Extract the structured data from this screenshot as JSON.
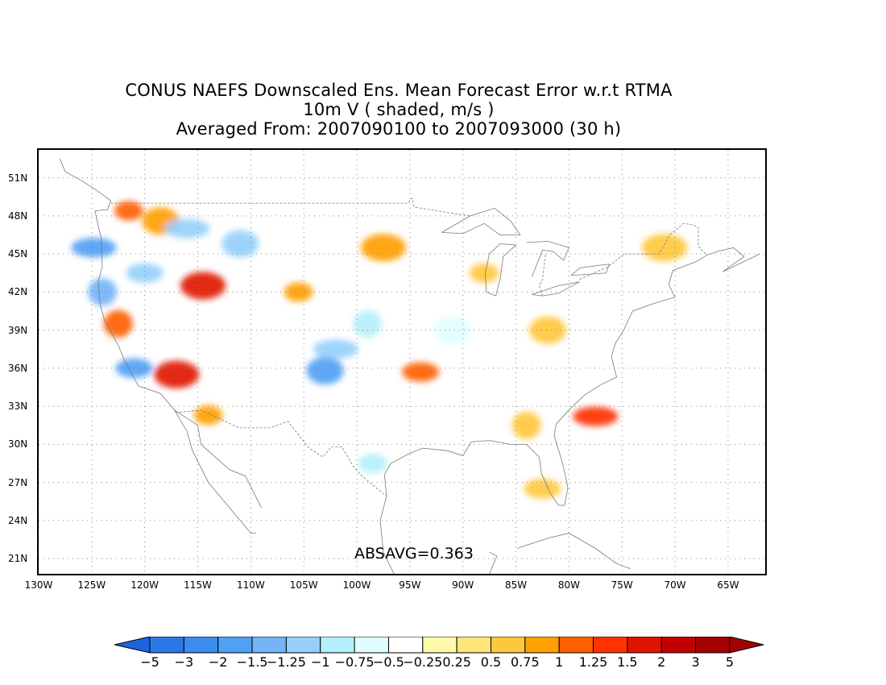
{
  "title": {
    "line1": "CONUS NAEFS Downscaled Ens. Mean Forecast Error w.r.t RTMA",
    "line2": "10m V ( shaded, m/s )",
    "line3": "Averaged From: 2007090100 to 2007093000 (30 h)"
  },
  "map": {
    "lat_labels": [
      "51N",
      "48N",
      "45N",
      "42N",
      "39N",
      "36N",
      "33N",
      "30N",
      "27N",
      "24N",
      "21N"
    ],
    "lon_labels": [
      "130W",
      "125W",
      "120W",
      "115W",
      "110W",
      "105W",
      "100W",
      "95W",
      "90W",
      "85W",
      "80W",
      "75W",
      "70W",
      "65W"
    ],
    "lat_values": [
      51,
      48,
      45,
      42,
      39,
      36,
      33,
      30,
      27,
      24,
      21
    ],
    "lon_values": [
      -130,
      -125,
      -120,
      -115,
      -110,
      -105,
      -100,
      -95,
      -90,
      -85,
      -80,
      -75,
      -70,
      -65
    ],
    "extent": {
      "lon_min": -130,
      "lon_max": -61.5,
      "lat_min": 19.8,
      "lat_max": 53.2
    },
    "gridlines": true,
    "absavg": "ABSAVG=0.363"
  },
  "colorbar": {
    "tick_labels": [
      "-5",
      "-3",
      "-2",
      "-1.5",
      "-1.25",
      "-1",
      "-0.75",
      "-0.5",
      "-0.25",
      "0.25",
      "0.5",
      "0.75",
      "1",
      "1.25",
      "1.5",
      "2",
      "3",
      "5"
    ],
    "colors": [
      "#1e64dc",
      "#2c78e6",
      "#3c8cf0",
      "#50a0f4",
      "#74b4f8",
      "#96d0fa",
      "#b4f0fc",
      "#e0fefe",
      "#ffffff",
      "#fffaaa",
      "#ffe678",
      "#ffc83c",
      "#ffa000",
      "#ff6000",
      "#ff3200",
      "#e11400",
      "#c00000",
      "#a50000"
    ]
  },
  "blobs": [
    {
      "lon": -121.5,
      "lat": 48.4,
      "value": 1.2
    },
    {
      "lon": -118.5,
      "lat": 47.6,
      "value": 0.9
    },
    {
      "lon": -124.8,
      "lat": 45.5,
      "value": -1.3
    },
    {
      "lon": -124.0,
      "lat": 42.0,
      "value": -1.1
    },
    {
      "lon": -120.0,
      "lat": 43.5,
      "value": -1.0
    },
    {
      "lon": -114.5,
      "lat": 42.5,
      "value": 1.5
    },
    {
      "lon": -105.5,
      "lat": 42.0,
      "value": 0.8
    },
    {
      "lon": -111.0,
      "lat": 45.8,
      "value": -0.8
    },
    {
      "lon": -116.0,
      "lat": 47.0,
      "value": -0.9
    },
    {
      "lon": -122.5,
      "lat": 39.5,
      "value": 1.0
    },
    {
      "lon": -121.0,
      "lat": 36.0,
      "value": -1.3
    },
    {
      "lon": -117.0,
      "lat": 35.5,
      "value": 1.6
    },
    {
      "lon": -114.0,
      "lat": 32.3,
      "value": 0.8
    },
    {
      "lon": -103.0,
      "lat": 35.8,
      "value": -1.5
    },
    {
      "lon": -102.0,
      "lat": 37.5,
      "value": -0.8
    },
    {
      "lon": -99.0,
      "lat": 39.5,
      "value": -0.6
    },
    {
      "lon": -94.0,
      "lat": 35.7,
      "value": 1.2
    },
    {
      "lon": -97.5,
      "lat": 45.5,
      "value": 0.8
    },
    {
      "lon": -88.0,
      "lat": 43.5,
      "value": 0.6
    },
    {
      "lon": -82.0,
      "lat": 39.0,
      "value": 0.7
    },
    {
      "lon": -77.5,
      "lat": 32.2,
      "value": 1.3
    },
    {
      "lon": -84.0,
      "lat": 31.5,
      "value": 0.5
    },
    {
      "lon": -82.5,
      "lat": 26.5,
      "value": 0.7
    },
    {
      "lon": -71.0,
      "lat": 45.5,
      "value": 0.6
    },
    {
      "lon": -98.5,
      "lat": 28.5,
      "value": -0.7
    },
    {
      "lon": -91.0,
      "lat": 39.0,
      "value": -0.4
    }
  ],
  "coastlines": [
    [
      [
        -124.7,
        48.4
      ],
      [
        -124.1,
        46.2
      ],
      [
        -124.0,
        44.0
      ],
      [
        -124.4,
        42.8
      ],
      [
        -124.2,
        41.0
      ],
      [
        -123.8,
        39.8
      ],
      [
        -122.5,
        37.8
      ],
      [
        -121.9,
        36.6
      ],
      [
        -120.6,
        34.6
      ],
      [
        -118.5,
        34.0
      ],
      [
        -117.2,
        32.7
      ],
      [
        -115.0,
        31.5
      ],
      [
        -114.7,
        30.0
      ],
      [
        -112.0,
        28.0
      ],
      [
        -110.5,
        27.5
      ],
      [
        -109.0,
        25.0
      ]
    ],
    [
      [
        -117.2,
        32.7
      ],
      [
        -116.0,
        31.0
      ],
      [
        -115.5,
        29.5
      ],
      [
        -114.0,
        27.0
      ],
      [
        -112.0,
        25.0
      ],
      [
        -110.0,
        23.0
      ],
      [
        -109.5,
        23.0
      ]
    ],
    [
      [
        -97.2,
        25.9
      ],
      [
        -97.4,
        27.6
      ],
      [
        -96.8,
        28.5
      ],
      [
        -95.0,
        29.3
      ],
      [
        -93.8,
        29.7
      ],
      [
        -91.5,
        29.5
      ],
      [
        -90.0,
        29.1
      ],
      [
        -89.2,
        30.2
      ],
      [
        -87.5,
        30.3
      ],
      [
        -85.5,
        30.0
      ],
      [
        -84.0,
        30.0
      ],
      [
        -82.8,
        29.0
      ],
      [
        -82.6,
        27.7
      ],
      [
        -81.8,
        26.2
      ],
      [
        -81.0,
        25.2
      ],
      [
        -80.4,
        25.2
      ],
      [
        -80.1,
        26.6
      ],
      [
        -80.6,
        28.5
      ],
      [
        -81.4,
        30.7
      ],
      [
        -81.2,
        31.6
      ],
      [
        -79.9,
        32.8
      ],
      [
        -78.5,
        33.9
      ],
      [
        -77.0,
        34.7
      ],
      [
        -75.5,
        35.3
      ],
      [
        -76.0,
        36.9
      ],
      [
        -75.6,
        38.0
      ],
      [
        -74.9,
        38.9
      ],
      [
        -74.0,
        40.5
      ],
      [
        -72.0,
        41.1
      ],
      [
        -70.0,
        41.6
      ],
      [
        -70.6,
        42.6
      ],
      [
        -70.2,
        43.7
      ],
      [
        -68.0,
        44.4
      ],
      [
        -67.0,
        44.9
      ],
      [
        -66.0,
        45.2
      ],
      [
        -64.5,
        45.5
      ],
      [
        -63.5,
        44.8
      ],
      [
        -65.5,
        43.6
      ],
      [
        -62.0,
        45.0
      ]
    ],
    [
      [
        -97.2,
        25.9
      ],
      [
        -97.8,
        24.0
      ],
      [
        -97.5,
        21.5
      ],
      [
        -96.5,
        19.8
      ]
    ],
    [
      [
        -87.5,
        21.5
      ],
      [
        -86.8,
        21.2
      ],
      [
        -87.5,
        19.8
      ]
    ],
    [
      [
        -84.9,
        21.8
      ],
      [
        -82.0,
        22.6
      ],
      [
        -80.0,
        23.0
      ],
      [
        -77.5,
        21.8
      ],
      [
        -75.5,
        20.6
      ],
      [
        -74.2,
        20.2
      ]
    ],
    [
      [
        -124.7,
        48.4
      ],
      [
        -123.5,
        48.5
      ],
      [
        -123.2,
        49.2
      ],
      [
        -124.5,
        50.0
      ],
      [
        -126.0,
        50.8
      ],
      [
        -127.5,
        51.5
      ],
      [
        -128.0,
        52.5
      ]
    ],
    [
      [
        -92.0,
        46.7
      ],
      [
        -90.0,
        46.6
      ],
      [
        -88.0,
        47.4
      ],
      [
        -86.5,
        46.5
      ],
      [
        -84.6,
        46.5
      ],
      [
        -85.5,
        47.6
      ],
      [
        -87.0,
        48.6
      ],
      [
        -89.3,
        48.0
      ],
      [
        -92.0,
        46.7
      ]
    ],
    [
      [
        -87.8,
        42.0
      ],
      [
        -87.9,
        43.5
      ],
      [
        -87.5,
        45.0
      ],
      [
        -86.5,
        45.8
      ],
      [
        -85.0,
        45.7
      ],
      [
        -86.2,
        44.8
      ],
      [
        -86.5,
        43.0
      ],
      [
        -86.9,
        41.7
      ],
      [
        -87.8,
        42.0
      ]
    ],
    [
      [
        -82.5,
        41.7
      ],
      [
        -83.5,
        41.8
      ],
      [
        -81.0,
        42.5
      ],
      [
        -79.0,
        42.8
      ],
      [
        -81.0,
        41.9
      ],
      [
        -82.5,
        41.7
      ]
    ],
    [
      [
        -83.5,
        43.2
      ],
      [
        -82.5,
        45.3
      ],
      [
        -81.5,
        45.2
      ],
      [
        -80.5,
        44.5
      ],
      [
        -80.0,
        45.5
      ],
      [
        -82.0,
        46.0
      ],
      [
        -84.0,
        45.9
      ]
    ],
    [
      [
        -79.8,
        43.3
      ],
      [
        -76.5,
        43.5
      ],
      [
        -76.2,
        44.2
      ],
      [
        -79.0,
        43.9
      ],
      [
        -79.8,
        43.3
      ]
    ]
  ],
  "borders": [
    [
      [
        -123.2,
        49.0
      ],
      [
        -95.2,
        49.0
      ],
      [
        -94.8,
        49.4
      ],
      [
        -94.6,
        48.7
      ],
      [
        -91.0,
        48.2
      ],
      [
        -89.3,
        48.0
      ]
    ],
    [
      [
        -82.5,
        41.7
      ],
      [
        -82.8,
        42.5
      ],
      [
        -82.5,
        43.0
      ],
      [
        -82.2,
        45.0
      ]
    ],
    [
      [
        -79.0,
        43.0
      ],
      [
        -76.3,
        44.0
      ],
      [
        -74.8,
        45.0
      ],
      [
        -71.5,
        45.0
      ],
      [
        -70.5,
        46.5
      ],
      [
        -69.2,
        47.4
      ],
      [
        -68.3,
        47.3
      ],
      [
        -67.8,
        47.1
      ],
      [
        -67.8,
        45.6
      ],
      [
        -67.0,
        44.9
      ]
    ],
    [
      [
        -117.1,
        32.5
      ],
      [
        -114.7,
        32.7
      ],
      [
        -111.1,
        31.3
      ],
      [
        -108.2,
        31.3
      ],
      [
        -106.5,
        31.8
      ],
      [
        -104.5,
        29.7
      ],
      [
        -103.2,
        29.0
      ],
      [
        -102.4,
        29.8
      ],
      [
        -101.4,
        29.8
      ],
      [
        -100.3,
        28.2
      ],
      [
        -99.5,
        27.5
      ],
      [
        -97.2,
        25.9
      ]
    ]
  ]
}
